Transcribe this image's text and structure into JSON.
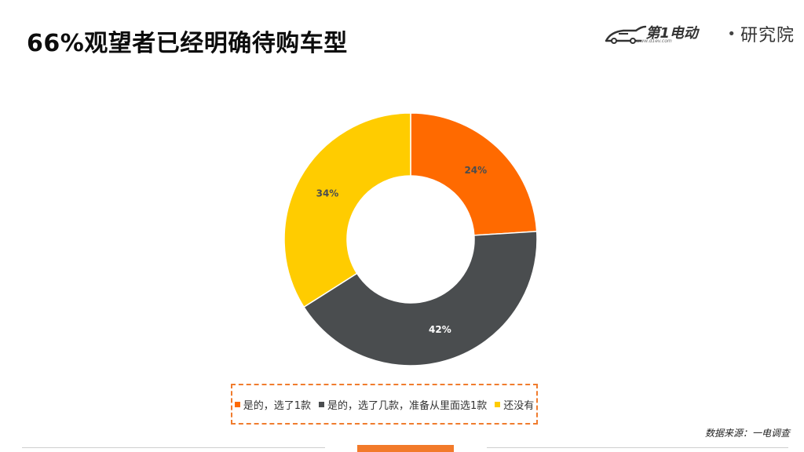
{
  "header": {
    "title": "66%观望者已经明确待购车型"
  },
  "logo": {
    "brand": "第1电动",
    "url": "www.d1ev.com",
    "separator": "•",
    "institute": "研究院"
  },
  "chart_data": {
    "type": "pie",
    "donut": true,
    "categories": [
      "是的，选了1款",
      "是的，选了几款，准备从里面选1款",
      "还没有"
    ],
    "values": [
      24,
      42,
      34
    ],
    "labels": [
      "24%",
      "42%",
      "34%"
    ],
    "colors": [
      "#ff6a00",
      "#4a4d4f",
      "#ffcc00"
    ],
    "label_colors": [
      "#4a4d4f",
      "#ffffff",
      "#4a4d4f"
    ],
    "legend_position": "bottom"
  },
  "source": "数据来源：一电调查"
}
